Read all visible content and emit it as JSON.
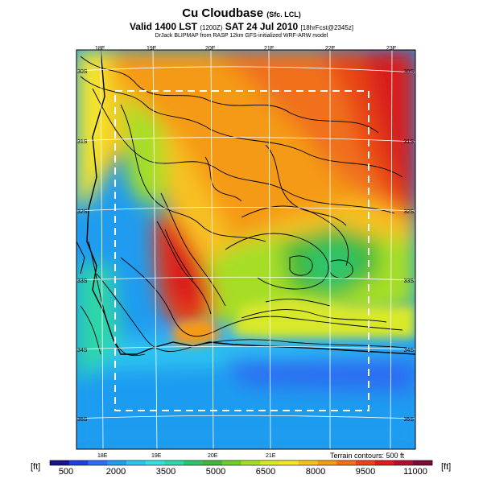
{
  "title": {
    "main": "Cu Cloudbase",
    "main_suffix": "(Sfc. LCL)",
    "valid": "Valid 1400 LST",
    "valid_code": "(1200Z)",
    "valid_date": "SAT 24 Jul 2010",
    "forecast": "[18hrFcst@2345z]",
    "source": "DrJack BLIPMAP from RASP 12km GFS-initialized WRF-ARW model"
  },
  "map": {
    "lon_labels_top": [
      "18E",
      "19E",
      "20E",
      "21E",
      "22E",
      "23E"
    ],
    "lon_labels_bottom": [
      "18E",
      "19E",
      "20E",
      "21E"
    ],
    "lat_labels_left": [
      "30S",
      "31S",
      "32S",
      "33S",
      "34S",
      "35S"
    ],
    "lat_labels_right": [
      "30S",
      "31S",
      "32S",
      "33S",
      "34S",
      "35S"
    ],
    "terrain_note": "Terrain contours: 500 ft"
  },
  "colorbar": {
    "unit_left": "[ft]",
    "unit_right": "[ft]",
    "tick_labels": [
      "500",
      "2000",
      "3500",
      "5000",
      "6500",
      "8000",
      "9500",
      "11000"
    ],
    "colors": [
      "#1a0f8c",
      "#1f3fd9",
      "#2a6ef2",
      "#1f9cf0",
      "#2ec4f0",
      "#35e0e0",
      "#2ed6a8",
      "#2ec46a",
      "#3fb83a",
      "#6fcf2a",
      "#a6de27",
      "#d8e82a",
      "#f5e62c",
      "#f7c020",
      "#f59a18",
      "#f0701a",
      "#e84418",
      "#d81e1e",
      "#b0102e",
      "#7a0a3a"
    ]
  }
}
